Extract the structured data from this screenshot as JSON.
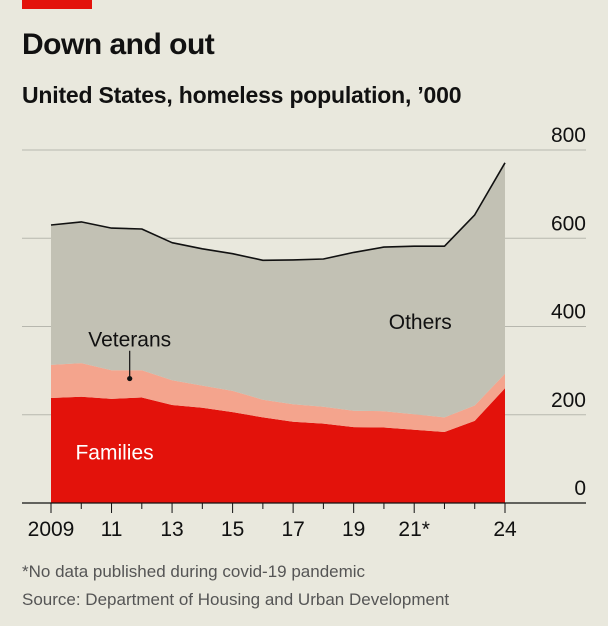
{
  "header": {
    "title": "Down and out",
    "subtitle": "United States, homeless population, ’000"
  },
  "footer": {
    "footnote": "*No data published during covid-19 pandemic",
    "source": "Source: Department of Housing and Urban Development"
  },
  "colors": {
    "background": "#e9e8dd",
    "brand_red": "#e3120b",
    "families": "#e3120b",
    "veterans": "#f4a48d",
    "others": "#c2c1b4",
    "total_line": "#111111",
    "grid": "#b7b7ae"
  },
  "chart_data": {
    "type": "area",
    "stacked": true,
    "x": [
      2009,
      2010,
      2011,
      2012,
      2013,
      2014,
      2015,
      2016,
      2017,
      2018,
      2019,
      2020,
      2021,
      2022,
      2023,
      2024
    ],
    "gap_years": [
      2021
    ],
    "series": [
      {
        "name": "Families",
        "values": [
          238,
          241,
          236,
          239,
          222,
          216,
          206,
          194,
          184,
          180,
          172,
          171,
          166,
          161,
          186,
          260
        ]
      },
      {
        "name": "Veterans",
        "values": [
          75,
          76,
          65,
          62,
          56,
          50,
          48,
          40,
          40,
          38,
          37,
          37,
          35,
          33,
          35,
          33
        ]
      },
      {
        "name": "Others",
        "values": [
          317,
          320,
          322,
          320,
          312,
          310,
          311,
          316,
          327,
          335,
          359,
          372,
          381,
          388,
          432,
          478
        ]
      }
    ],
    "total": [
      630,
      637,
      623,
      621,
      590,
      576,
      565,
      550,
      551,
      553,
      568,
      580,
      582,
      582,
      653,
      771
    ],
    "ylim": [
      0,
      800
    ],
    "yticks": [
      "0",
      "200",
      "400",
      "600",
      "800"
    ],
    "y_axis_position": "right",
    "xtick_labels": [
      {
        "x": 2009,
        "label": "2009"
      },
      {
        "x": 2011,
        "label": "11"
      },
      {
        "x": 2013,
        "label": "13"
      },
      {
        "x": 2015,
        "label": "15"
      },
      {
        "x": 2017,
        "label": "17"
      },
      {
        "x": 2019,
        "label": "19"
      },
      {
        "x": 2021,
        "label": "21*"
      },
      {
        "x": 2024,
        "label": "24"
      }
    ],
    "grid": true,
    "legend": "inline labels",
    "labels": {
      "families": "Families",
      "veterans": "Veterans",
      "others": "Others"
    }
  }
}
